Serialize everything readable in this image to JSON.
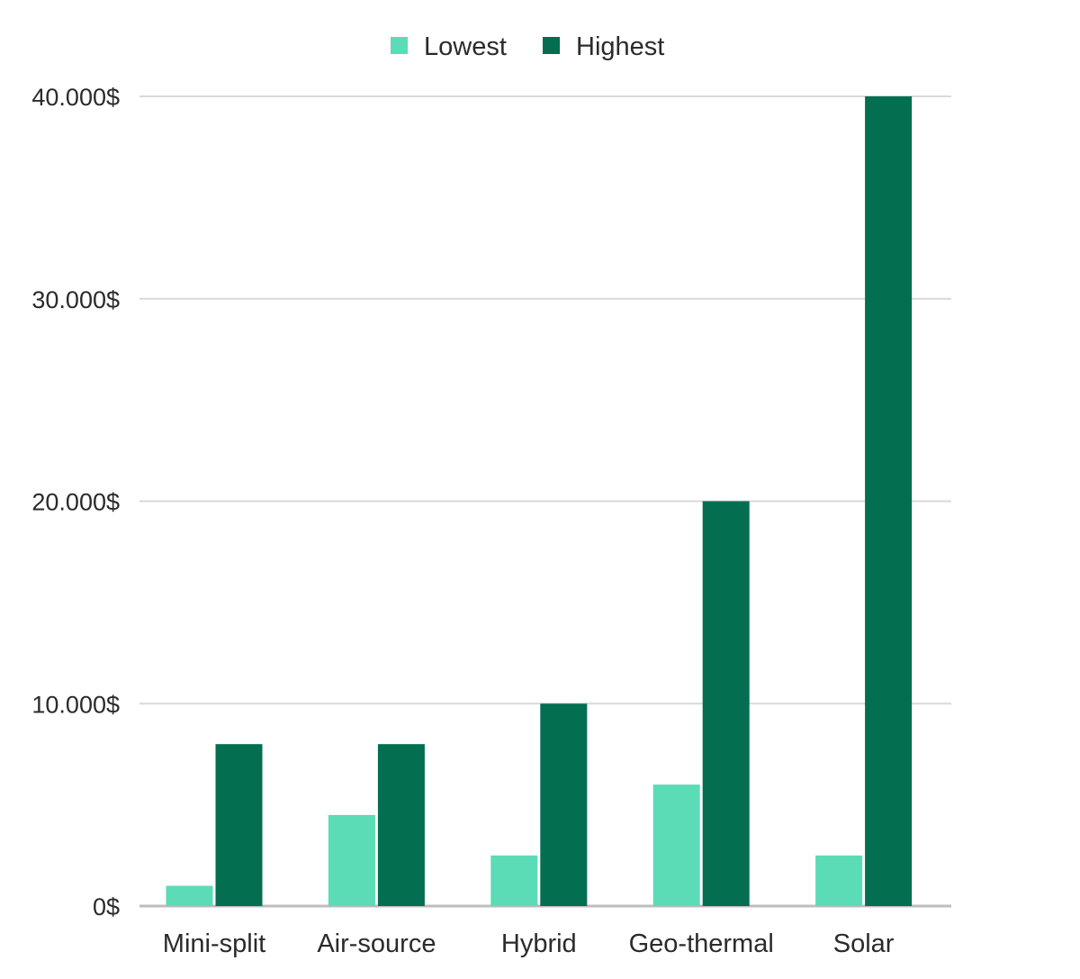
{
  "chart_data": {
    "type": "bar",
    "title": "",
    "xlabel": "",
    "ylabel": "",
    "categories": [
      "Mini-split",
      "Air-source",
      "Hybrid",
      "Geo-thermal",
      "Solar"
    ],
    "series": [
      {
        "name": "Lowest",
        "color": "#5bdbb6",
        "values": [
          1000,
          4500,
          2500,
          6000,
          2500
        ]
      },
      {
        "name": "Highest",
        "color": "#036e50",
        "values": [
          8000,
          8000,
          10000,
          20000,
          40000
        ]
      }
    ],
    "ylim": [
      0,
      40000
    ],
    "yticks": [
      {
        "value": 0,
        "label": "0$"
      },
      {
        "value": 10000,
        "label": "10.000$"
      },
      {
        "value": 20000,
        "label": "20.000$"
      },
      {
        "value": 30000,
        "label": "30.000$"
      },
      {
        "value": 40000,
        "label": "40.000$"
      }
    ],
    "grid": true,
    "legend_position": "top-center"
  }
}
